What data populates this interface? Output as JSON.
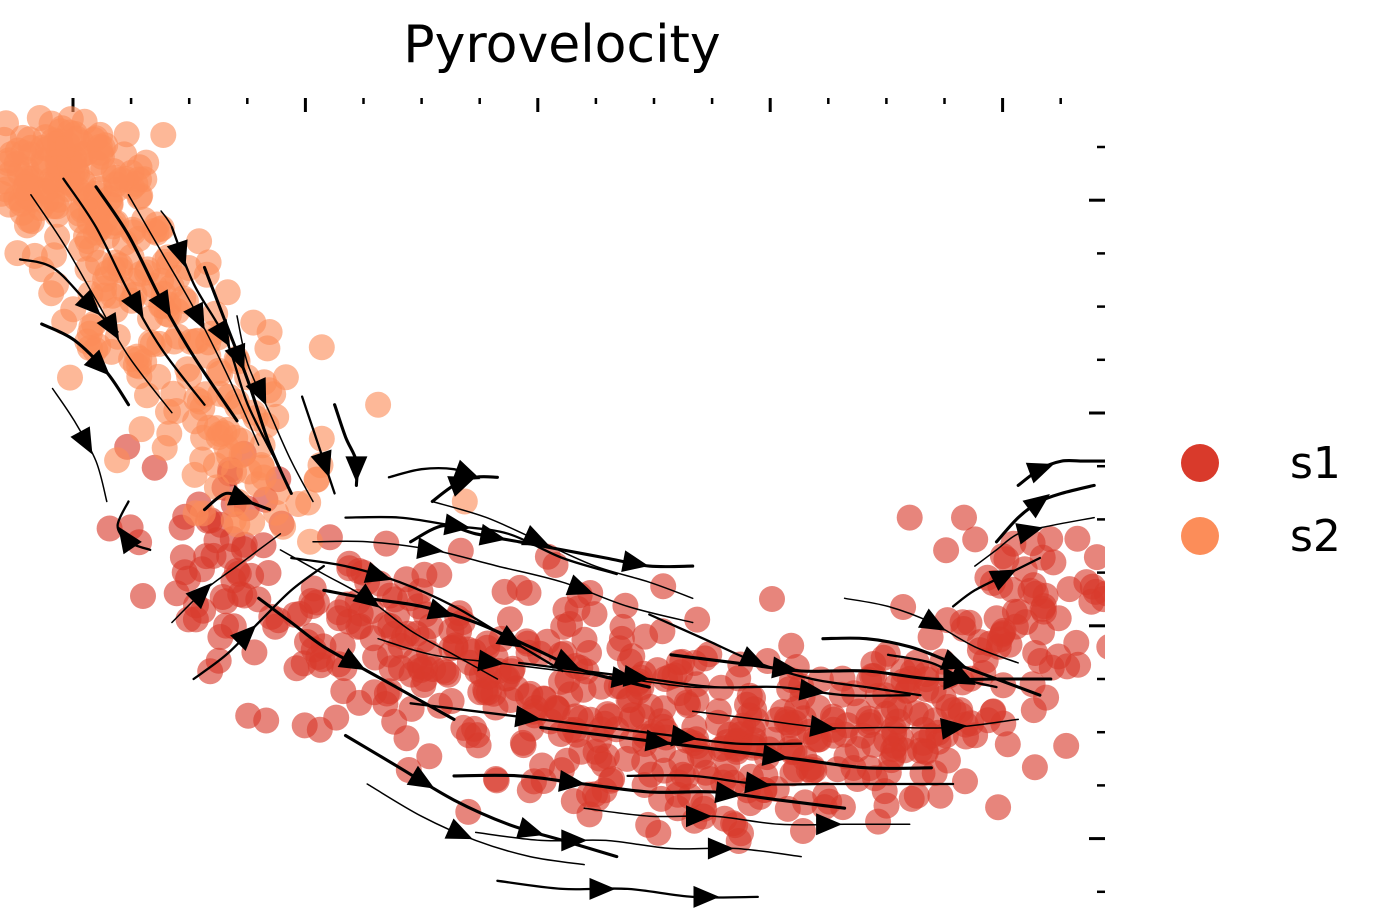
{
  "chart_data": {
    "type": "scatter",
    "title": "Pyrovelocity",
    "xlabel": "",
    "ylabel": "",
    "xlim": [
      0,
      100
    ],
    "ylim": [
      0,
      100
    ],
    "grid": false,
    "legend_position": "right",
    "overlay": "streamlines",
    "series": [
      {
        "name": "s1",
        "color": "#d93a2b",
        "clusters": [
          {
            "cx": 28,
            "cy": 36,
            "sx": 6,
            "sy": 5,
            "n": 70
          },
          {
            "cx": 42,
            "cy": 30,
            "sx": 8,
            "sy": 5,
            "n": 110
          },
          {
            "cx": 58,
            "cy": 22,
            "sx": 8,
            "sy": 6,
            "n": 130
          },
          {
            "cx": 72,
            "cy": 20,
            "sx": 8,
            "sy": 5,
            "n": 120
          },
          {
            "cx": 84,
            "cy": 25,
            "sx": 6,
            "sy": 5,
            "n": 70
          },
          {
            "cx": 93,
            "cy": 37,
            "sx": 3.5,
            "sy": 5,
            "n": 55
          },
          {
            "cx": 17,
            "cy": 45,
            "sx": 4,
            "sy": 5,
            "n": 40
          }
        ],
        "points": [
          [
            82,
            48
          ],
          [
            87,
            48
          ]
        ]
      },
      {
        "name": "s2",
        "color": "#fc8d59",
        "clusters": [
          {
            "cx": 5,
            "cy": 90,
            "sx": 3.5,
            "sy": 3.5,
            "n": 150
          },
          {
            "cx": 11,
            "cy": 76,
            "sx": 4,
            "sy": 6,
            "n": 90
          },
          {
            "cx": 18,
            "cy": 62,
            "sx": 4,
            "sy": 5,
            "n": 55
          },
          {
            "cx": 23,
            "cy": 52,
            "sx": 3,
            "sy": 3,
            "n": 25
          }
        ],
        "points": [
          [
            23,
            71
          ],
          [
            33,
            62
          ],
          [
            41,
            50
          ]
        ]
      }
    ],
    "streamlines": [
      {
        "x": [
          1,
          4,
          7,
          10,
          14
        ],
        "y": [
          88,
          82,
          75,
          68,
          61
        ],
        "arrows": [
          0.6
        ]
      },
      {
        "x": [
          4,
          7,
          10,
          13,
          17
        ],
        "y": [
          90,
          84,
          76,
          69,
          62
        ],
        "arrows": [
          0.55
        ]
      },
      {
        "x": [
          7,
          10,
          13,
          16,
          20
        ],
        "y": [
          89,
          83,
          75,
          68,
          60
        ],
        "arrows": [
          0.5
        ]
      },
      {
        "x": [
          10,
          13,
          16,
          19,
          22
        ],
        "y": [
          88,
          81,
          74,
          66,
          57
        ],
        "arrows": [
          0.5
        ]
      },
      {
        "x": [
          14,
          16,
          19,
          21,
          24
        ],
        "y": [
          84,
          77,
          70,
          62,
          54
        ],
        "arrows": [
          0.45
        ]
      },
      {
        "x": [
          17,
          19,
          21,
          23,
          25
        ],
        "y": [
          79,
          72,
          65,
          57,
          51
        ],
        "arrows": [
          0.4
        ]
      },
      {
        "x": [
          20,
          21,
          23,
          25,
          27
        ],
        "y": [
          73,
          67,
          61,
          55,
          50
        ],
        "arrows": [
          0.4
        ]
      },
      {
        "x": [
          26,
          27,
          28,
          29
        ],
        "y": [
          63,
          59,
          55,
          51
        ],
        "arrows": [
          0.7
        ]
      },
      {
        "x": [
          29,
          30,
          31,
          31
        ],
        "y": [
          62,
          58,
          55,
          52
        ],
        "arrows": [
          0.8
        ]
      },
      {
        "x": [
          13,
          14,
          15,
          16
        ],
        "y": [
          86,
          84,
          80,
          77
        ],
        "arrows": [
          0.6
        ]
      },
      {
        "x": [
          0,
          3,
          6,
          9
        ],
        "y": [
          80,
          79,
          75,
          71
        ],
        "arrows": [
          0.7
        ]
      },
      {
        "x": [
          2,
          5,
          8,
          10
        ],
        "y": [
          72,
          70,
          66,
          62
        ],
        "arrows": [
          0.6
        ]
      },
      {
        "x": [
          3,
          5,
          7,
          8
        ],
        "y": [
          64,
          60,
          55,
          50
        ],
        "arrows": [
          0.5
        ]
      },
      {
        "x": [
          12,
          10,
          9,
          10
        ],
        "y": [
          44,
          45,
          47,
          50
        ],
        "arrows": [
          0.4
        ]
      },
      {
        "x": [
          17,
          19,
          21,
          23
        ],
        "y": [
          49,
          51,
          50,
          49
        ],
        "arrows": [
          0.6
        ]
      },
      {
        "x": [
          14,
          17,
          20,
          22,
          24
        ],
        "y": [
          35,
          39,
          42,
          44,
          46
        ],
        "arrows": [
          0.3
        ]
      },
      {
        "x": [
          16,
          19,
          22,
          25,
          28
        ],
        "y": [
          28,
          31,
          35,
          39,
          42
        ],
        "arrows": [
          0.4
        ]
      },
      {
        "x": [
          22,
          25,
          28,
          32,
          36,
          40
        ],
        "y": [
          38,
          35,
          32,
          29,
          26,
          23
        ],
        "arrows": [
          0.5
        ]
      },
      {
        "x": [
          24,
          28,
          32,
          36,
          40,
          44
        ],
        "y": [
          44,
          41,
          38,
          34,
          31,
          28
        ],
        "arrows": [
          0.4
        ]
      },
      {
        "x": [
          25,
          30,
          35,
          40,
          45,
          50
        ],
        "y": [
          43,
          42,
          40,
          37,
          33,
          29
        ],
        "arrows": [
          0.3,
          0.8
        ]
      },
      {
        "x": [
          28,
          32,
          37,
          42,
          47,
          52,
          58
        ],
        "y": [
          39,
          38,
          37,
          35,
          32,
          29,
          27
        ],
        "arrows": [
          0.35,
          0.75
        ]
      },
      {
        "x": [
          27,
          32,
          38,
          44,
          50,
          56,
          62
        ],
        "y": [
          45,
          45,
          44,
          42,
          40,
          37,
          35
        ],
        "arrows": [
          0.3,
          0.7
        ]
      },
      {
        "x": [
          30,
          35,
          40,
          45,
          50,
          55
        ],
        "y": [
          48,
          48,
          47,
          46,
          43,
          41
        ],
        "arrows": [
          0.4
        ]
      },
      {
        "x": [
          36,
          39,
          42,
          46,
          50,
          54,
          58,
          62
        ],
        "y": [
          45,
          47,
          46,
          45,
          44,
          43,
          42,
          42
        ],
        "arrows": [
          0.3,
          0.8
        ]
      },
      {
        "x": [
          38,
          43,
          48,
          53,
          58,
          62
        ],
        "y": [
          50,
          48,
          45,
          42,
          40,
          38
        ],
        "arrows": [
          0.4
        ]
      },
      {
        "x": [
          34,
          37,
          40,
          42
        ],
        "y": [
          53,
          54,
          54,
          53
        ],
        "arrows": [
          0.9
        ]
      },
      {
        "x": [
          38,
          40,
          42,
          44
        ],
        "y": [
          50,
          52,
          53,
          53
        ],
        "arrows": [
          0.5
        ]
      },
      {
        "x": [
          33,
          38,
          44,
          50,
          56,
          62,
          68
        ],
        "y": [
          33,
          31,
          30,
          29,
          28,
          27,
          27
        ],
        "arrows": [
          0.3,
          0.65
        ]
      },
      {
        "x": [
          36,
          42,
          48,
          54,
          60,
          66,
          72
        ],
        "y": [
          25,
          24,
          23,
          22,
          21,
          20,
          20
        ],
        "arrows": [
          0.3,
          0.7
        ]
      },
      {
        "x": [
          40,
          46,
          52,
          58,
          64,
          70,
          76
        ],
        "y": [
          16,
          16,
          15,
          14,
          14,
          13,
          12
        ],
        "arrows": [
          0.3,
          0.7
        ]
      },
      {
        "x": [
          42,
          48,
          54,
          60,
          66,
          72
        ],
        "y": [
          9,
          8,
          8,
          7,
          7,
          6
        ],
        "arrows": [
          0.3,
          0.75
        ]
      },
      {
        "x": [
          44,
          50,
          56,
          62,
          68
        ],
        "y": [
          3,
          2,
          2,
          1,
          1
        ],
        "arrows": [
          0.4,
          0.8
        ]
      },
      {
        "x": [
          30,
          35,
          40,
          45,
          50,
          55
        ],
        "y": [
          21,
          17,
          13,
          10,
          8,
          6
        ],
        "arrows": [
          0.3,
          0.7
        ]
      },
      {
        "x": [
          32,
          37,
          42,
          47,
          52
        ],
        "y": [
          15,
          11,
          8,
          6,
          5
        ],
        "arrows": [
          0.45
        ]
      },
      {
        "x": [
          46,
          52,
          58,
          64,
          70,
          76,
          82
        ],
        "y": [
          30,
          29,
          28,
          27,
          27,
          26,
          26
        ],
        "arrows": [
          0.3,
          0.75
        ]
      },
      {
        "x": [
          48,
          54,
          60,
          66,
          72,
          78,
          84
        ],
        "y": [
          22,
          21,
          20,
          19,
          18,
          17,
          17
        ],
        "arrows": [
          0.3,
          0.6
        ]
      },
      {
        "x": [
          52,
          58,
          64,
          70,
          76,
          82
        ],
        "y": [
          12,
          11,
          11,
          10,
          10,
          10
        ],
        "arrows": [
          0.35,
          0.75
        ]
      },
      {
        "x": [
          58,
          63,
          68,
          73,
          78,
          83
        ],
        "y": [
          36,
          33,
          30,
          28,
          27,
          26
        ],
        "arrows": [
          0.4
        ]
      },
      {
        "x": [
          60,
          66,
          72,
          78,
          84,
          90,
          95
        ],
        "y": [
          31,
          30,
          29,
          29,
          28,
          28,
          28
        ],
        "arrows": [
          0.3,
          0.75
        ]
      },
      {
        "x": [
          62,
          68,
          74,
          80,
          86,
          92
        ],
        "y": [
          24,
          23,
          22,
          22,
          22,
          23
        ],
        "arrows": [
          0.4,
          0.8
        ]
      },
      {
        "x": [
          56,
          62,
          68,
          74,
          80,
          86
        ],
        "y": [
          16,
          16,
          15,
          15,
          15,
          15
        ],
        "arrows": [
          0.4
        ]
      },
      {
        "x": [
          74,
          78,
          82,
          86,
          90,
          94
        ],
        "y": [
          33,
          33,
          32,
          30,
          28,
          26
        ],
        "arrows": [
          0.6
        ]
      },
      {
        "x": [
          76,
          80,
          84,
          88,
          92
        ],
        "y": [
          38,
          37,
          35,
          32,
          30
        ],
        "arrows": [
          0.5
        ]
      },
      {
        "x": [
          80,
          84,
          87,
          90
        ],
        "y": [
          31,
          30,
          28,
          27
        ],
        "arrows": [
          0.7
        ]
      },
      {
        "x": [
          90,
          92,
          94,
          96,
          99
        ],
        "y": [
          45,
          48,
          50,
          51,
          52
        ],
        "arrows": [
          0.5
        ]
      },
      {
        "x": [
          88,
          90,
          92,
          95,
          99
        ],
        "y": [
          42,
          44,
          46,
          47,
          48
        ],
        "arrows": [
          0.5
        ]
      },
      {
        "x": [
          86,
          88,
          91,
          94
        ],
        "y": [
          37,
          39,
          41,
          43
        ],
        "arrows": [
          0.6
        ]
      },
      {
        "x": [
          92,
          94,
          96,
          98,
          100
        ],
        "y": [
          52,
          54,
          55,
          55,
          55
        ],
        "arrows": [
          0.3
        ]
      }
    ]
  },
  "legend": {
    "items": [
      {
        "label": "s1",
        "color": "#d93a2b"
      },
      {
        "label": "s2",
        "color": "#fc8d59"
      }
    ]
  }
}
